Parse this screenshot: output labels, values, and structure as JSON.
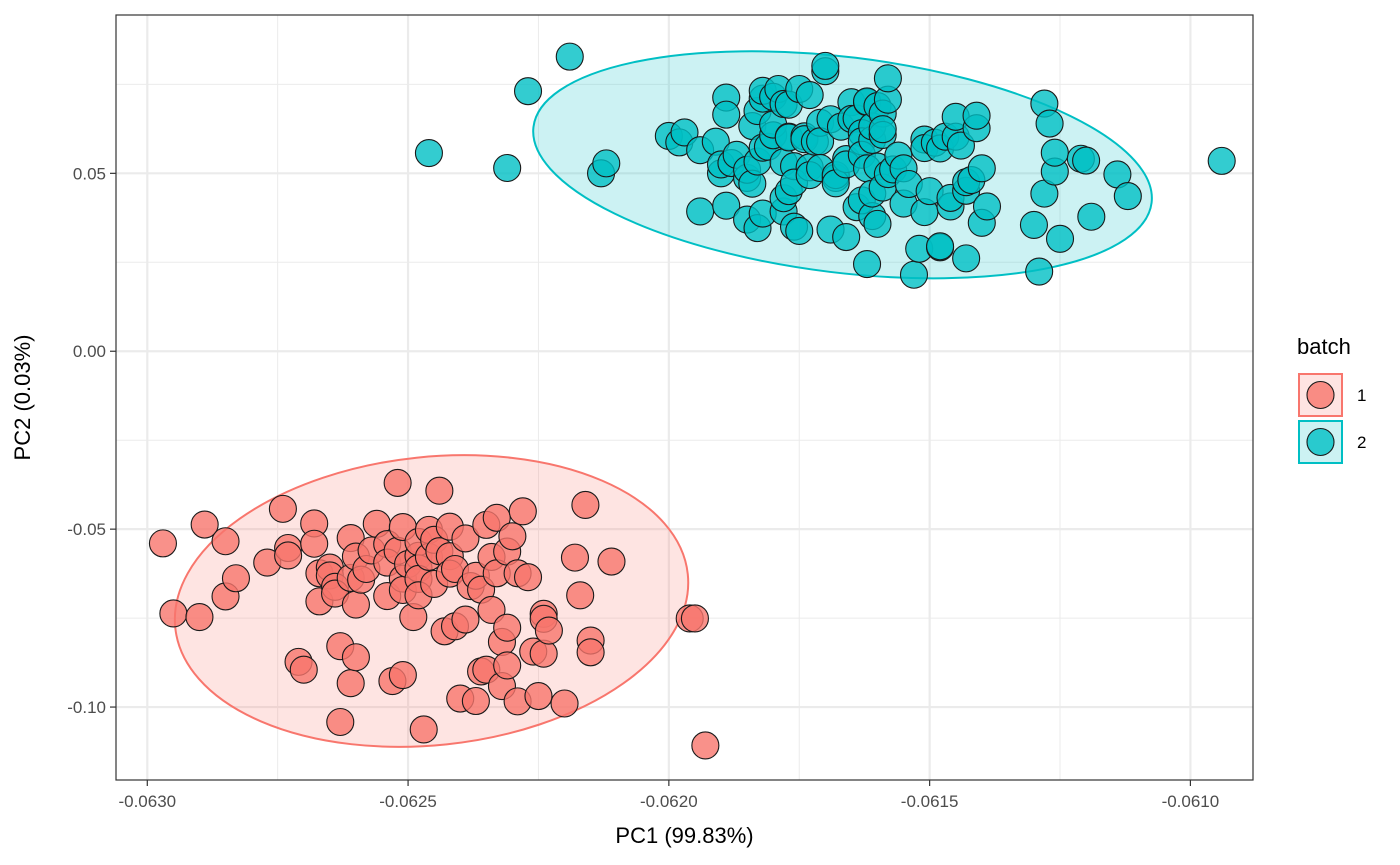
{
  "chart_data": {
    "type": "scatter",
    "title": "",
    "xlabel": "PC1 (99.83%)",
    "ylabel": "PC2 (0.03%)",
    "xlim": [
      -0.06306,
      -0.06088
    ],
    "ylim": [
      -0.1205,
      0.0945
    ],
    "x_ticks": [
      {
        "value": -0.063,
        "label": "-0.0630"
      },
      {
        "value": -0.0625,
        "label": "-0.0625"
      },
      {
        "value": -0.062,
        "label": "-0.0620"
      },
      {
        "value": -0.0615,
        "label": "-0.0615"
      },
      {
        "value": -0.061,
        "label": "-0.0610"
      }
    ],
    "y_ticks": [
      {
        "value": 0.05,
        "label": "0.05"
      },
      {
        "value": 0.0,
        "label": "0.00"
      },
      {
        "value": -0.05,
        "label": "-0.05"
      },
      {
        "value": -0.1,
        "label": "-0.10"
      }
    ],
    "grid": true,
    "legend": {
      "title": "batch",
      "position": "right"
    },
    "series": [
      {
        "name": "1",
        "color": "#F8766D",
        "ellipse": {
          "cx": -0.062455,
          "cy": -0.0702,
          "rx": 0.000494,
          "ry": 0.0405,
          "rotation_deg": -6
        },
        "points": [
          [
            -0.06297,
            -0.054
          ],
          [
            -0.06295,
            -0.0737
          ],
          [
            -0.0629,
            -0.0747
          ],
          [
            -0.06289,
            -0.0487
          ],
          [
            -0.06285,
            -0.0534
          ],
          [
            -0.06285,
            -0.0689
          ],
          [
            -0.06283,
            -0.0638
          ],
          [
            -0.06277,
            -0.0594
          ],
          [
            -0.06274,
            -0.0443
          ],
          [
            -0.06273,
            -0.0553
          ],
          [
            -0.06273,
            -0.0574
          ],
          [
            -0.06271,
            -0.0873
          ],
          [
            -0.0627,
            -0.0895
          ],
          [
            -0.06268,
            -0.0484
          ],
          [
            -0.06268,
            -0.0541
          ],
          [
            -0.06267,
            -0.0624
          ],
          [
            -0.06267,
            -0.0703
          ],
          [
            -0.06265,
            -0.0608
          ],
          [
            -0.06265,
            -0.063
          ],
          [
            -0.06264,
            -0.0662
          ],
          [
            -0.06264,
            -0.0681
          ],
          [
            -0.06263,
            -0.0829
          ],
          [
            -0.06263,
            -0.1042
          ],
          [
            -0.06261,
            -0.0933
          ],
          [
            -0.06261,
            -0.0525
          ],
          [
            -0.06261,
            -0.0637
          ],
          [
            -0.0626,
            -0.0577
          ],
          [
            -0.0626,
            -0.086
          ],
          [
            -0.0626,
            -0.0712
          ],
          [
            -0.06259,
            -0.0642
          ],
          [
            -0.06258,
            -0.0612
          ],
          [
            -0.06257,
            -0.056
          ],
          [
            -0.06256,
            -0.0485
          ],
          [
            -0.06254,
            -0.0542
          ],
          [
            -0.06254,
            -0.0594
          ],
          [
            -0.06254,
            -0.0688
          ],
          [
            -0.06253,
            -0.0927
          ],
          [
            -0.06252,
            -0.037
          ],
          [
            -0.06252,
            -0.0561
          ],
          [
            -0.06251,
            -0.0494
          ],
          [
            -0.06251,
            -0.0639
          ],
          [
            -0.06251,
            -0.0671
          ],
          [
            -0.06251,
            -0.091
          ],
          [
            -0.0625,
            -0.0598
          ],
          [
            -0.06249,
            -0.0747
          ],
          [
            -0.06248,
            -0.0575
          ],
          [
            -0.06248,
            -0.0536
          ],
          [
            -0.06248,
            -0.061
          ],
          [
            -0.06248,
            -0.064
          ],
          [
            -0.06248,
            -0.0686
          ],
          [
            -0.06247,
            -0.1063
          ],
          [
            -0.06246,
            -0.0502
          ],
          [
            -0.06246,
            -0.0578
          ],
          [
            -0.06245,
            -0.053
          ],
          [
            -0.06245,
            -0.0654
          ],
          [
            -0.06244,
            -0.0392
          ],
          [
            -0.06244,
            -0.0562
          ],
          [
            -0.06243,
            -0.0787
          ],
          [
            -0.06242,
            -0.0493
          ],
          [
            -0.06242,
            -0.0576
          ],
          [
            -0.06242,
            -0.0625
          ],
          [
            -0.06241,
            -0.0612
          ],
          [
            -0.06241,
            -0.0773
          ],
          [
            -0.0624,
            -0.0976
          ],
          [
            -0.06239,
            -0.0526
          ],
          [
            -0.06239,
            -0.0754
          ],
          [
            -0.06238,
            -0.066
          ],
          [
            -0.06237,
            -0.0631
          ],
          [
            -0.06237,
            -0.0983
          ],
          [
            -0.06236,
            -0.09
          ],
          [
            -0.06236,
            -0.067
          ],
          [
            -0.06235,
            -0.0488
          ],
          [
            -0.06235,
            -0.0895
          ],
          [
            -0.06234,
            -0.0578
          ],
          [
            -0.06234,
            -0.0727
          ],
          [
            -0.06233,
            -0.0624
          ],
          [
            -0.06233,
            -0.0468
          ],
          [
            -0.06232,
            -0.0941
          ],
          [
            -0.06232,
            -0.0817
          ],
          [
            -0.06231,
            -0.0563
          ],
          [
            -0.06231,
            -0.0777
          ],
          [
            -0.06231,
            -0.0883
          ],
          [
            -0.0623,
            -0.052
          ],
          [
            -0.06229,
            -0.0624
          ],
          [
            -0.06229,
            -0.0984
          ],
          [
            -0.06228,
            -0.045
          ],
          [
            -0.06227,
            -0.0635
          ],
          [
            -0.06226,
            -0.0844
          ],
          [
            -0.06225,
            -0.0969
          ],
          [
            -0.06224,
            -0.0738
          ],
          [
            -0.06224,
            -0.0752
          ],
          [
            -0.06224,
            -0.085
          ],
          [
            -0.06223,
            -0.0785
          ],
          [
            -0.0622,
            -0.099
          ],
          [
            -0.06218,
            -0.058
          ],
          [
            -0.06217,
            -0.0686
          ],
          [
            -0.06216,
            -0.0432
          ],
          [
            -0.06215,
            -0.0813
          ],
          [
            -0.06215,
            -0.0846
          ],
          [
            -0.06211,
            -0.0591
          ],
          [
            -0.06196,
            -0.0751
          ],
          [
            -0.06195,
            -0.0751
          ],
          [
            -0.06193,
            -0.1108
          ]
        ]
      },
      {
        "name": "2",
        "color": "#00BFC4",
        "ellipse": {
          "cx": -0.061667,
          "cy": 0.0524,
          "rx": 0.000597,
          "ry": 0.0303,
          "rotation_deg": 7
        },
        "points": [
          [
            -0.06246,
            0.0557
          ],
          [
            -0.06231,
            0.0515
          ],
          [
            -0.06227,
            0.0731
          ],
          [
            -0.06219,
            0.0828
          ],
          [
            -0.06213,
            0.05
          ],
          [
            -0.06212,
            0.0528
          ],
          [
            -0.062,
            0.0605
          ],
          [
            -0.06198,
            0.0587
          ],
          [
            -0.06197,
            0.0615
          ],
          [
            -0.06194,
            0.0565
          ],
          [
            -0.06194,
            0.0393
          ],
          [
            -0.06191,
            0.0589
          ],
          [
            -0.0619,
            0.05
          ],
          [
            -0.0619,
            0.0525
          ],
          [
            -0.06189,
            0.0409
          ],
          [
            -0.06189,
            0.0713
          ],
          [
            -0.06189,
            0.0665
          ],
          [
            -0.06188,
            0.0529
          ],
          [
            -0.06187,
            0.0552
          ],
          [
            -0.06185,
            0.0487
          ],
          [
            -0.06185,
            0.051
          ],
          [
            -0.06185,
            0.037
          ],
          [
            -0.06184,
            0.0633
          ],
          [
            -0.06184,
            0.0471
          ],
          [
            -0.06183,
            0.0533
          ],
          [
            -0.06183,
            0.0675
          ],
          [
            -0.06183,
            0.0346
          ],
          [
            -0.06182,
            0.071
          ],
          [
            -0.06182,
            0.0732
          ],
          [
            -0.06182,
            0.0572
          ],
          [
            -0.06182,
            0.0387
          ],
          [
            -0.06181,
            0.0575
          ],
          [
            -0.0618,
            0.0607
          ],
          [
            -0.0618,
            0.0715
          ],
          [
            -0.0618,
            0.0637
          ],
          [
            -0.06179,
            0.0737
          ],
          [
            -0.06178,
            0.0393
          ],
          [
            -0.06178,
            0.0531
          ],
          [
            -0.06178,
            0.0695
          ],
          [
            -0.06178,
            0.043
          ],
          [
            -0.06177,
            0.0693
          ],
          [
            -0.06177,
            0.045
          ],
          [
            -0.06177,
            0.0603
          ],
          [
            -0.06177,
            0.0601
          ],
          [
            -0.06176,
            0.035
          ],
          [
            -0.06176,
            0.052
          ],
          [
            -0.06176,
            0.0474
          ],
          [
            -0.06175,
            0.0737
          ],
          [
            -0.06175,
            0.0338
          ],
          [
            -0.06174,
            0.0604
          ],
          [
            -0.06174,
            0.0596
          ],
          [
            -0.06173,
            0.0517
          ],
          [
            -0.06173,
            0.0495
          ],
          [
            -0.06173,
            0.072
          ],
          [
            -0.06172,
            0.0589
          ],
          [
            -0.06171,
            0.0642
          ],
          [
            -0.06171,
            0.059
          ],
          [
            -0.06171,
            0.0515
          ],
          [
            -0.0617,
            0.0787
          ],
          [
            -0.0617,
            0.0802
          ],
          [
            -0.06169,
            0.0342
          ],
          [
            -0.06169,
            0.0652
          ],
          [
            -0.06168,
            0.0487
          ],
          [
            -0.06168,
            0.0495
          ],
          [
            -0.06168,
            0.0472
          ],
          [
            -0.06167,
            0.0631
          ],
          [
            -0.06166,
            0.0321
          ],
          [
            -0.06166,
            0.054
          ],
          [
            -0.06166,
            0.0525
          ],
          [
            -0.06165,
            0.07
          ],
          [
            -0.06165,
            0.0653
          ],
          [
            -0.06164,
            0.0654
          ],
          [
            -0.06164,
            0.0405
          ],
          [
            -0.06163,
            0.0424
          ],
          [
            -0.06163,
            0.0613
          ],
          [
            -0.06163,
            0.059
          ],
          [
            -0.06163,
            0.0552
          ],
          [
            -0.06162,
            0.07
          ],
          [
            -0.06162,
            0.0702
          ],
          [
            -0.06162,
            0.0514
          ],
          [
            -0.06162,
            0.0245
          ],
          [
            -0.06161,
            0.038
          ],
          [
            -0.06161,
            0.0443
          ],
          [
            -0.06161,
            0.0594
          ],
          [
            -0.06161,
            0.0632
          ],
          [
            -0.0616,
            0.0689
          ],
          [
            -0.0616,
            0.0358
          ],
          [
            -0.0616,
            0.0519
          ],
          [
            -0.06159,
            0.0668
          ],
          [
            -0.06159,
            0.0608
          ],
          [
            -0.06159,
            0.0624
          ],
          [
            -0.06159,
            0.046
          ],
          [
            -0.06158,
            0.0707
          ],
          [
            -0.06158,
            0.0498
          ],
          [
            -0.06158,
            0.0767
          ],
          [
            -0.06157,
            0.0511
          ],
          [
            -0.06156,
            0.055
          ],
          [
            -0.06155,
            0.0415
          ],
          [
            -0.06155,
            0.0514
          ],
          [
            -0.06154,
            0.047
          ],
          [
            -0.06153,
            0.0215
          ],
          [
            -0.06152,
            0.0288
          ],
          [
            -0.06151,
            0.0595
          ],
          [
            -0.06151,
            0.0571
          ],
          [
            -0.06151,
            0.0391
          ],
          [
            -0.0615,
            0.045
          ],
          [
            -0.06149,
            0.0586
          ],
          [
            -0.06148,
            0.057
          ],
          [
            -0.06148,
            0.0292
          ],
          [
            -0.06148,
            0.0295
          ],
          [
            -0.06147,
            0.0603
          ],
          [
            -0.06146,
            0.0407
          ],
          [
            -0.06146,
            0.0431
          ],
          [
            -0.06145,
            0.0603
          ],
          [
            -0.06145,
            0.0659
          ],
          [
            -0.06144,
            0.0578
          ],
          [
            -0.06143,
            0.0261
          ],
          [
            -0.06143,
            0.0451
          ],
          [
            -0.06143,
            0.0475
          ],
          [
            -0.06142,
            0.0481
          ],
          [
            -0.06141,
            0.0627
          ],
          [
            -0.06141,
            0.0662
          ],
          [
            -0.0614,
            0.0361
          ],
          [
            -0.0614,
            0.0514
          ],
          [
            -0.06139,
            0.0407
          ],
          [
            -0.0613,
            0.0355
          ],
          [
            -0.06129,
            0.0224
          ],
          [
            -0.06128,
            0.0443
          ],
          [
            -0.06128,
            0.0696
          ],
          [
            -0.06127,
            0.064
          ],
          [
            -0.06126,
            0.0505
          ],
          [
            -0.06126,
            0.0558
          ],
          [
            -0.06125,
            0.0316
          ],
          [
            -0.06121,
            0.0541
          ],
          [
            -0.0612,
            0.0536
          ],
          [
            -0.06119,
            0.0378
          ],
          [
            -0.06114,
            0.0497
          ],
          [
            -0.06112,
            0.0436
          ],
          [
            -0.06094,
            0.0535
          ]
        ]
      }
    ]
  }
}
